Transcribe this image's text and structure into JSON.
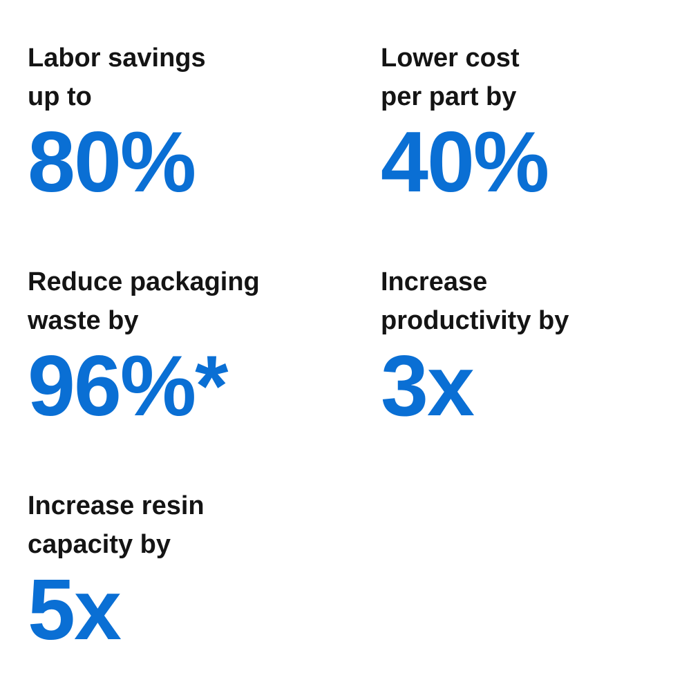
{
  "stats": [
    {
      "label_lines": [
        "Labor savings",
        "up to"
      ],
      "value": "80%"
    },
    {
      "label_lines": [
        "Lower cost",
        "per part by"
      ],
      "value": "40%"
    },
    {
      "label_lines": [
        "Reduce packaging",
        "waste by"
      ],
      "value": "96%*"
    },
    {
      "label_lines": [
        "Increase",
        "productivity by"
      ],
      "value": "3x"
    },
    {
      "label_lines": [
        "Increase resin",
        "capacity by"
      ],
      "value": "5x"
    }
  ]
}
